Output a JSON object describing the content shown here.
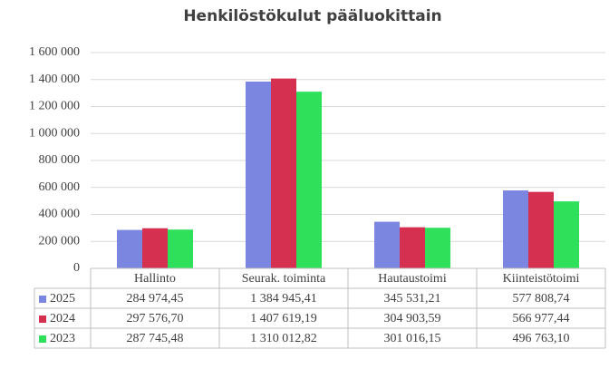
{
  "chart_data": {
    "type": "bar",
    "title": "Henkilöstökulut pääluokittain",
    "categories": [
      "Hallinto",
      "Seurak. toiminta",
      "Hautaustoimi",
      "Kiinteistötoimi"
    ],
    "series": [
      {
        "name": "2025",
        "color": "#7b86e0",
        "values": [
          284974.45,
          1384945.41,
          345531.21,
          577808.74
        ],
        "value_labels": [
          "284 974,45",
          "1 384 945,41",
          "345 531,21",
          "577 808,74"
        ]
      },
      {
        "name": "2024",
        "color": "#d5304f",
        "values": [
          297576.7,
          1407619.19,
          304903.59,
          566977.44
        ],
        "value_labels": [
          "297 576,70",
          "1 407 619,19",
          "304 903,59",
          "566 977,44"
        ]
      },
      {
        "name": "2023",
        "color": "#2ee05a",
        "values": [
          287745.48,
          1310012.82,
          301016.15,
          496763.1
        ],
        "value_labels": [
          "287 745,48",
          "1 310 012,82",
          "301 016,15",
          "496 763,10"
        ]
      }
    ],
    "ylim": [
      0,
      1600000
    ],
    "yticks": [
      0,
      {
        "value": 200000,
        "label": "200 000"
      },
      {
        "value": 400000,
        "label": "400 000"
      },
      {
        "value": 600000,
        "label": "600 000"
      },
      {
        "value": 800000,
        "label": "800 000"
      },
      {
        "value": 1000000,
        "label": "1 000 000"
      },
      {
        "value": 1200000,
        "label": "1 200 000"
      },
      {
        "value": 1400000,
        "label": "1 400 000"
      },
      {
        "value": 1600000,
        "label": "1 600 000"
      }
    ],
    "grid": true
  }
}
